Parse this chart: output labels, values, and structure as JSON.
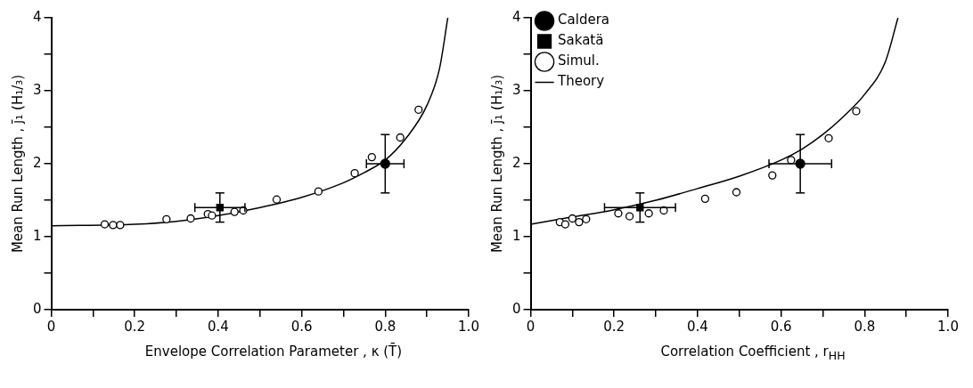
{
  "chart_data": [
    {
      "type": "scatter",
      "ylabel": "Mean Run Length , j̄₁ (H₁/₃)",
      "xlabel": "Envelope Correlation Parameter , κ (T̄)",
      "xlim": [
        0,
        1
      ],
      "ylim": [
        0,
        4
      ],
      "xticks": [
        0,
        {
          "value": 0.1,
          "label": null
        },
        0.2,
        {
          "value": 0.3,
          "label": null
        },
        0.4,
        {
          "value": 0.5,
          "label": null
        },
        0.6,
        {
          "value": 0.7,
          "label": null
        },
        0.8,
        {
          "value": 0.9,
          "label": null
        },
        {
          "value": 1,
          "label": "1.0"
        }
      ],
      "yticks": [
        0,
        {
          "value": 0.5,
          "label": null
        },
        1,
        {
          "value": 1.5,
          "label": null
        },
        2,
        {
          "value": 2.5,
          "label": null
        },
        3,
        {
          "value": 3.5,
          "label": null
        },
        4
      ],
      "grid": false,
      "legend": false,
      "series": [
        {
          "type": "scatter",
          "marker": "circle",
          "color": "#000000",
          "x": [
            0.8
          ],
          "values": [
            2.0
          ],
          "errors": [
            0.4
          ],
          "xerrors": [
            0.045
          ]
        },
        {
          "type": "scatter",
          "marker": "square",
          "color": "#000000",
          "x": [
            0.404
          ],
          "values": [
            1.4
          ],
          "errors": [
            0.2
          ],
          "xerrors": [
            0.06
          ]
        },
        {
          "type": "scatter",
          "marker": "circle",
          "color": "#000000",
          "x": [
            0.128,
            0.148,
            0.165,
            0.276,
            0.334,
            0.375,
            0.385,
            0.439,
            0.46,
            0.54,
            0.64,
            0.727,
            0.768,
            0.836,
            0.88
          ],
          "values": [
            1.17,
            1.16,
            1.16,
            1.24,
            1.25,
            1.31,
            1.29,
            1.34,
            1.36,
            1.51,
            1.62,
            1.87,
            2.09,
            2.36,
            2.74
          ]
        },
        {
          "type": "line",
          "marker": "none",
          "color": "#000000",
          "x": [
            0,
            0.2,
            0.3,
            0.4,
            0.5,
            0.6,
            0.7,
            0.75,
            0.8,
            0.85,
            0.9,
            0.93,
            0.95
          ],
          "values": [
            1.15,
            1.17,
            1.21,
            1.29,
            1.4,
            1.54,
            1.74,
            1.88,
            2.05,
            2.35,
            2.8,
            3.3,
            4.0
          ]
        }
      ]
    },
    {
      "type": "scatter",
      "ylabel": "Mean Run Length , j̄₁ (H₁/₃)",
      "xlabel": "Correlation Coefficient , r$_{HH}$",
      "xlim": [
        0,
        1
      ],
      "ylim": [
        0,
        4
      ],
      "xticks": [
        0,
        {
          "value": 0.1,
          "label": null
        },
        0.2,
        {
          "value": 0.3,
          "label": null
        },
        0.4,
        {
          "value": 0.5,
          "label": null
        },
        0.6,
        {
          "value": 0.7,
          "label": null
        },
        0.8,
        {
          "value": 0.9,
          "label": null
        },
        {
          "value": 1,
          "label": "1.0"
        }
      ],
      "yticks": [
        0,
        {
          "value": 0.5,
          "label": null
        },
        1,
        {
          "value": 1.5,
          "label": null
        },
        2,
        {
          "value": 2.5,
          "label": null
        },
        3,
        {
          "value": 3.5,
          "label": null
        },
        4
      ],
      "grid": false,
      "legend": "top left",
      "series": [
        {
          "name": "Caldera",
          "type": "scatter",
          "marker": "circle",
          "color": "#000000",
          "x": [
            0.646
          ],
          "values": [
            2.0
          ],
          "errors": [
            0.4
          ],
          "xerrors": [
            0.075
          ]
        },
        {
          "name": "Sakatä",
          "type": "scatter",
          "marker": "square",
          "color": "#000000",
          "x": [
            0.262
          ],
          "values": [
            1.4
          ],
          "errors": [
            0.2
          ],
          "xerrors": [
            0.085
          ]
        },
        {
          "name": "Simul.",
          "type": "scatter",
          "marker": "circle",
          "color": "#000000",
          "x": [
            0.07,
            0.083,
            0.1,
            0.116,
            0.133,
            0.21,
            0.237,
            0.283,
            0.319,
            0.418,
            0.493,
            0.579,
            0.624,
            0.714,
            0.78
          ],
          "values": [
            1.2,
            1.17,
            1.25,
            1.2,
            1.24,
            1.32,
            1.28,
            1.32,
            1.36,
            1.52,
            1.61,
            1.84,
            2.05,
            2.35,
            2.72
          ]
        },
        {
          "name": "Theory",
          "type": "line",
          "marker": "none",
          "color": "#000000",
          "x": [
            0,
            0.1,
            0.2,
            0.3,
            0.4,
            0.5,
            0.6,
            0.65,
            0.7,
            0.75,
            0.8,
            0.85,
            0.88
          ],
          "values": [
            1.17,
            1.27,
            1.37,
            1.5,
            1.66,
            1.83,
            2.05,
            2.2,
            2.4,
            2.65,
            2.95,
            3.4,
            4.0
          ]
        }
      ]
    }
  ]
}
